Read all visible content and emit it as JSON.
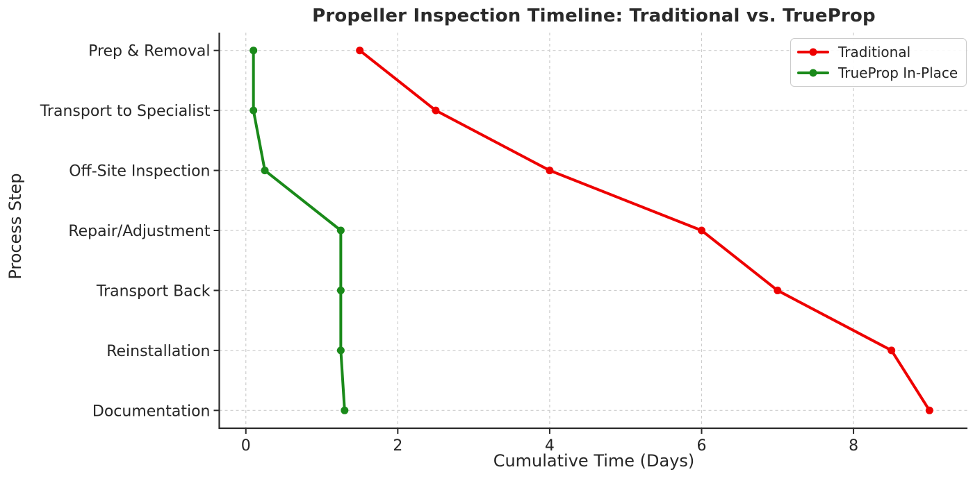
{
  "chart_data": {
    "type": "line",
    "title": "Propeller Inspection Timeline: Traditional vs. TrueProp",
    "xlabel": "Cumulative Time (Days)",
    "ylabel": "Process Step",
    "orientation": "horizontal_categorical",
    "categories": [
      "Prep & Removal",
      "Transport to Specialist",
      "Off-Site Inspection",
      "Repair/Adjustment",
      "Transport Back",
      "Reinstallation",
      "Documentation"
    ],
    "series": [
      {
        "name": "Traditional",
        "color": "#ee0000",
        "values": [
          1.5,
          2.5,
          4.0,
          6.0,
          7.0,
          8.5,
          9.0
        ]
      },
      {
        "name": "TrueProp In-Place",
        "color": "#1a8a1a",
        "values": [
          0.1,
          0.1,
          0.25,
          1.25,
          1.25,
          1.25,
          1.3
        ]
      }
    ],
    "xticks": [
      0,
      2,
      4,
      6,
      8
    ],
    "xlim": [
      -0.35,
      9.5
    ],
    "grid": true,
    "grid_style": "dashed",
    "legend_position": "upper right",
    "colors": {
      "grid": "#cccccc",
      "axis": "#2a2a2a",
      "text": "#262626",
      "background": "#ffffff"
    }
  }
}
